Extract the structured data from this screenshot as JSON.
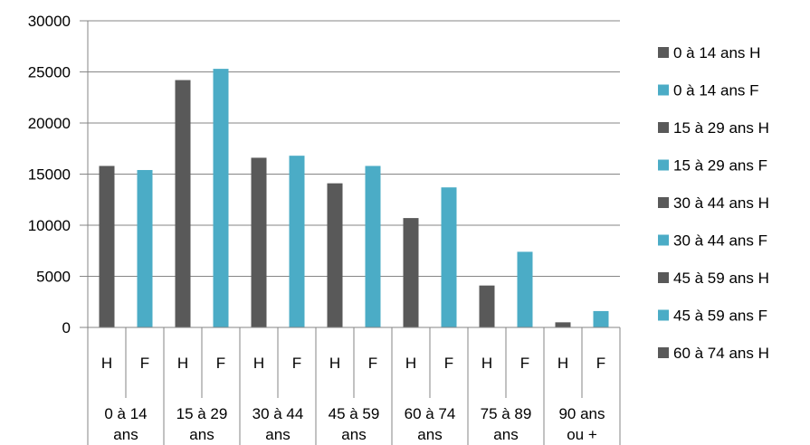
{
  "chart_data": {
    "type": "bar",
    "groups": [
      {
        "label_lines": [
          "0 à 14",
          "ans"
        ],
        "H": 15800,
        "F": 15400
      },
      {
        "label_lines": [
          "15 à 29",
          "ans"
        ],
        "H": 24200,
        "F": 25300
      },
      {
        "label_lines": [
          "30 à 44",
          "ans"
        ],
        "H": 16600,
        "F": 16800
      },
      {
        "label_lines": [
          "45 à 59",
          "ans"
        ],
        "H": 14100,
        "F": 15800
      },
      {
        "label_lines": [
          "60 à 74",
          "ans"
        ],
        "H": 10700,
        "F": 13700
      },
      {
        "label_lines": [
          "75 à 89",
          "ans"
        ],
        "H": 4100,
        "F": 7400
      },
      {
        "label_lines": [
          "90 ans",
          "ou +"
        ],
        "H": 500,
        "F": 1600
      }
    ],
    "sub_labels": [
      "H",
      "F"
    ],
    "y_ticks": [
      0,
      5000,
      10000,
      15000,
      20000,
      25000,
      30000
    ],
    "ylim": [
      0,
      30000
    ],
    "grid": true,
    "legend_position": "right",
    "legend": [
      {
        "label": "0 à 14 ans H",
        "color": "#595959"
      },
      {
        "label": "0 à 14 ans F",
        "color": "#4bacc6"
      },
      {
        "label": "15 à 29 ans H",
        "color": "#595959"
      },
      {
        "label": "15 à 29 ans F",
        "color": "#4bacc6"
      },
      {
        "label": "30 à 44 ans H",
        "color": "#595959"
      },
      {
        "label": "30 à 44 ans F",
        "color": "#4bacc6"
      },
      {
        "label": "45 à 59 ans H",
        "color": "#595959"
      },
      {
        "label": "45 à 59 ans F",
        "color": "#4bacc6"
      },
      {
        "label": "60 à 74 ans H",
        "color": "#595959"
      }
    ],
    "colors": {
      "H": "#595959",
      "F": "#4bacc6",
      "grid": "#868686",
      "axis": "#868686"
    }
  }
}
